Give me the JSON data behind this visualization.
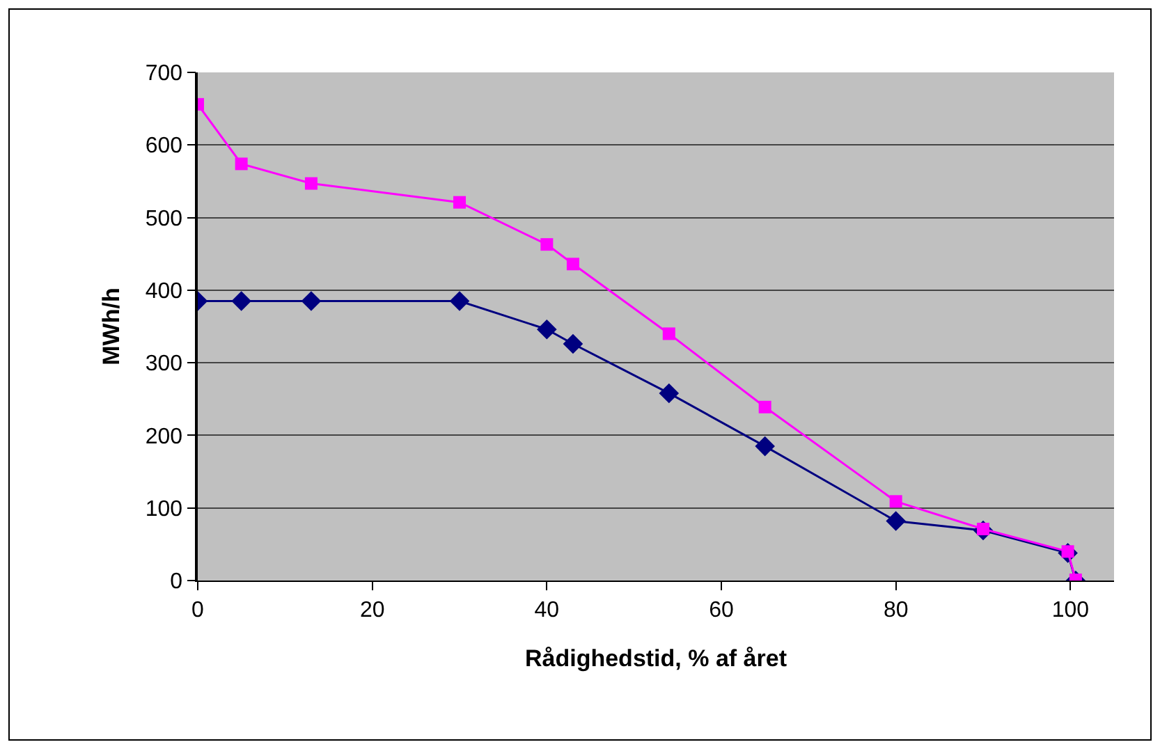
{
  "chart_data": {
    "type": "line",
    "xlabel": "Rådighedstid, % af året",
    "ylabel": "MWh/h",
    "xlim": [
      0,
      105
    ],
    "xticks": [
      0,
      20,
      40,
      60,
      80,
      100
    ],
    "ylim": [
      0,
      700
    ],
    "yticks": [
      0,
      100,
      200,
      300,
      400,
      500,
      600,
      700
    ],
    "grid": "y",
    "series": [
      {
        "color": "#000080",
        "marker": "diamond",
        "x": [
          0,
          5,
          13,
          30,
          40,
          43,
          54,
          65,
          80,
          90,
          99.7,
          100.6
        ],
        "values": [
          385,
          385,
          385,
          385,
          346,
          326,
          258,
          185,
          82,
          69,
          38,
          0
        ]
      },
      {
        "color": "#ff00ff",
        "marker": "square",
        "x": [
          0,
          5,
          13,
          30,
          40,
          43,
          54,
          65,
          80,
          90,
          99.7,
          100.6
        ],
        "values": [
          656,
          574,
          547,
          521,
          463,
          436,
          340,
          239,
          109,
          71,
          40,
          1
        ]
      }
    ]
  }
}
